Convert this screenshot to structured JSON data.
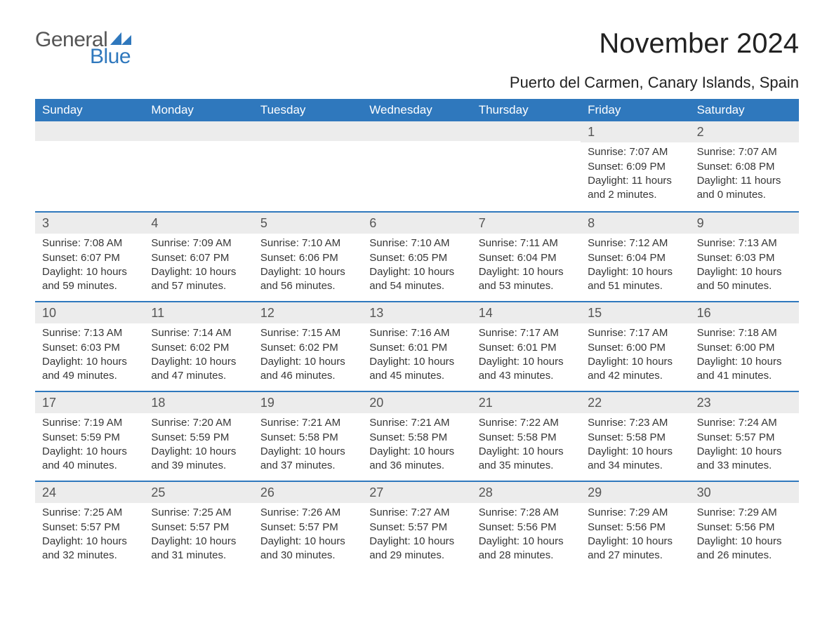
{
  "logo": {
    "word1": "General",
    "word2": "Blue",
    "color_gray": "#555555",
    "color_blue": "#2f78bd"
  },
  "title": "November 2024",
  "location": "Puerto del Carmen, Canary Islands, Spain",
  "weekday_labels": [
    "Sunday",
    "Monday",
    "Tuesday",
    "Wednesday",
    "Thursday",
    "Friday",
    "Saturday"
  ],
  "colors": {
    "header_bg": "#2f78bd",
    "header_fg": "#ffffff",
    "daynum_bg": "#ececec",
    "text": "#363636",
    "background": "#ffffff",
    "row_divider": "#2f78bd"
  },
  "typography": {
    "title_fontsize": 40,
    "location_fontsize": 22,
    "header_fontsize": 17,
    "daynum_fontsize": 18,
    "body_fontsize": 15
  },
  "layout": {
    "columns": 7,
    "rows": 5,
    "start_day_index": 5
  },
  "days": {
    "1": {
      "sunrise": "Sunrise: 7:07 AM",
      "sunset": "Sunset: 6:09 PM",
      "daylight": "Daylight: 11 hours and 2 minutes."
    },
    "2": {
      "sunrise": "Sunrise: 7:07 AM",
      "sunset": "Sunset: 6:08 PM",
      "daylight": "Daylight: 11 hours and 0 minutes."
    },
    "3": {
      "sunrise": "Sunrise: 7:08 AM",
      "sunset": "Sunset: 6:07 PM",
      "daylight": "Daylight: 10 hours and 59 minutes."
    },
    "4": {
      "sunrise": "Sunrise: 7:09 AM",
      "sunset": "Sunset: 6:07 PM",
      "daylight": "Daylight: 10 hours and 57 minutes."
    },
    "5": {
      "sunrise": "Sunrise: 7:10 AM",
      "sunset": "Sunset: 6:06 PM",
      "daylight": "Daylight: 10 hours and 56 minutes."
    },
    "6": {
      "sunrise": "Sunrise: 7:10 AM",
      "sunset": "Sunset: 6:05 PM",
      "daylight": "Daylight: 10 hours and 54 minutes."
    },
    "7": {
      "sunrise": "Sunrise: 7:11 AM",
      "sunset": "Sunset: 6:04 PM",
      "daylight": "Daylight: 10 hours and 53 minutes."
    },
    "8": {
      "sunrise": "Sunrise: 7:12 AM",
      "sunset": "Sunset: 6:04 PM",
      "daylight": "Daylight: 10 hours and 51 minutes."
    },
    "9": {
      "sunrise": "Sunrise: 7:13 AM",
      "sunset": "Sunset: 6:03 PM",
      "daylight": "Daylight: 10 hours and 50 minutes."
    },
    "10": {
      "sunrise": "Sunrise: 7:13 AM",
      "sunset": "Sunset: 6:03 PM",
      "daylight": "Daylight: 10 hours and 49 minutes."
    },
    "11": {
      "sunrise": "Sunrise: 7:14 AM",
      "sunset": "Sunset: 6:02 PM",
      "daylight": "Daylight: 10 hours and 47 minutes."
    },
    "12": {
      "sunrise": "Sunrise: 7:15 AM",
      "sunset": "Sunset: 6:02 PM",
      "daylight": "Daylight: 10 hours and 46 minutes."
    },
    "13": {
      "sunrise": "Sunrise: 7:16 AM",
      "sunset": "Sunset: 6:01 PM",
      "daylight": "Daylight: 10 hours and 45 minutes."
    },
    "14": {
      "sunrise": "Sunrise: 7:17 AM",
      "sunset": "Sunset: 6:01 PM",
      "daylight": "Daylight: 10 hours and 43 minutes."
    },
    "15": {
      "sunrise": "Sunrise: 7:17 AM",
      "sunset": "Sunset: 6:00 PM",
      "daylight": "Daylight: 10 hours and 42 minutes."
    },
    "16": {
      "sunrise": "Sunrise: 7:18 AM",
      "sunset": "Sunset: 6:00 PM",
      "daylight": "Daylight: 10 hours and 41 minutes."
    },
    "17": {
      "sunrise": "Sunrise: 7:19 AM",
      "sunset": "Sunset: 5:59 PM",
      "daylight": "Daylight: 10 hours and 40 minutes."
    },
    "18": {
      "sunrise": "Sunrise: 7:20 AM",
      "sunset": "Sunset: 5:59 PM",
      "daylight": "Daylight: 10 hours and 39 minutes."
    },
    "19": {
      "sunrise": "Sunrise: 7:21 AM",
      "sunset": "Sunset: 5:58 PM",
      "daylight": "Daylight: 10 hours and 37 minutes."
    },
    "20": {
      "sunrise": "Sunrise: 7:21 AM",
      "sunset": "Sunset: 5:58 PM",
      "daylight": "Daylight: 10 hours and 36 minutes."
    },
    "21": {
      "sunrise": "Sunrise: 7:22 AM",
      "sunset": "Sunset: 5:58 PM",
      "daylight": "Daylight: 10 hours and 35 minutes."
    },
    "22": {
      "sunrise": "Sunrise: 7:23 AM",
      "sunset": "Sunset: 5:58 PM",
      "daylight": "Daylight: 10 hours and 34 minutes."
    },
    "23": {
      "sunrise": "Sunrise: 7:24 AM",
      "sunset": "Sunset: 5:57 PM",
      "daylight": "Daylight: 10 hours and 33 minutes."
    },
    "24": {
      "sunrise": "Sunrise: 7:25 AM",
      "sunset": "Sunset: 5:57 PM",
      "daylight": "Daylight: 10 hours and 32 minutes."
    },
    "25": {
      "sunrise": "Sunrise: 7:25 AM",
      "sunset": "Sunset: 5:57 PM",
      "daylight": "Daylight: 10 hours and 31 minutes."
    },
    "26": {
      "sunrise": "Sunrise: 7:26 AM",
      "sunset": "Sunset: 5:57 PM",
      "daylight": "Daylight: 10 hours and 30 minutes."
    },
    "27": {
      "sunrise": "Sunrise: 7:27 AM",
      "sunset": "Sunset: 5:57 PM",
      "daylight": "Daylight: 10 hours and 29 minutes."
    },
    "28": {
      "sunrise": "Sunrise: 7:28 AM",
      "sunset": "Sunset: 5:56 PM",
      "daylight": "Daylight: 10 hours and 28 minutes."
    },
    "29": {
      "sunrise": "Sunrise: 7:29 AM",
      "sunset": "Sunset: 5:56 PM",
      "daylight": "Daylight: 10 hours and 27 minutes."
    },
    "30": {
      "sunrise": "Sunrise: 7:29 AM",
      "sunset": "Sunset: 5:56 PM",
      "daylight": "Daylight: 10 hours and 26 minutes."
    }
  }
}
